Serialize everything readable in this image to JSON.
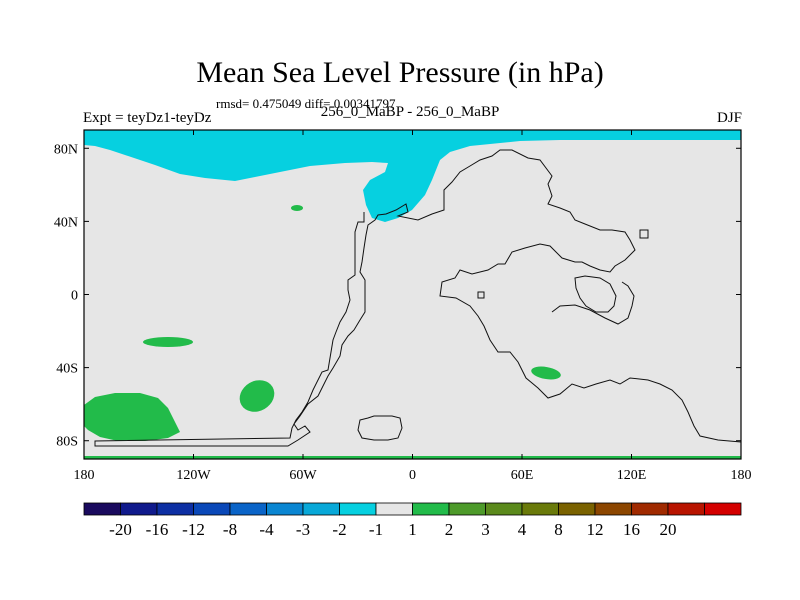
{
  "chart_data": {
    "type": "heatmap",
    "title": "Mean Sea Level Pressure (in hPa)",
    "subtitle": "rmsd= 0.475049 diff= 0.00341797",
    "left_label": "Expt = teyDz1-teyDz",
    "center_label": "256_0_MaBP - 256_0_MaBP",
    "right_label": "DJF",
    "x_axis": {
      "range": [
        -180,
        180
      ],
      "ticks": [
        -180,
        -120,
        -60,
        0,
        60,
        120,
        180
      ],
      "tick_labels": [
        "180",
        "120W",
        "60W",
        "0",
        "60E",
        "120E",
        "180"
      ]
    },
    "y_axis": {
      "range": [
        -90,
        90
      ],
      "ticks": [
        80,
        40,
        0,
        -40,
        -80
      ],
      "tick_labels": [
        "80N",
        "40N",
        "0",
        "40S",
        "80S"
      ]
    },
    "colorbar": {
      "colors": [
        "#1a0a5e",
        "#101a8c",
        "#0d2fa3",
        "#0a48b8",
        "#0a64c8",
        "#0a86d2",
        "#08a8d8",
        "#06d0e0",
        "#e6e6e6",
        "#22bb4a",
        "#4d9a2a",
        "#5b8a1c",
        "#6a7a0a",
        "#7a6200",
        "#8c4600",
        "#a02a00",
        "#b81400",
        "#d40000"
      ],
      "labels": [
        "-20",
        "-16",
        "-12",
        "-8",
        "-4",
        "-3",
        "-2",
        "-1",
        "1",
        "2",
        "3",
        "4",
        "8",
        "12",
        "16",
        "20"
      ]
    },
    "regions": [
      {
        "name": "Arctic low-pressure band",
        "range": "-2 to -1",
        "color": "#06d0e0"
      },
      {
        "name": "North Atlantic tongue",
        "range": "-2 to -1",
        "color": "#06d0e0"
      },
      {
        "name": "South Pacific patches",
        "range": "1 to 2",
        "color": "#22bb4a"
      },
      {
        "name": "Southern Indian Ocean patch",
        "range": "1 to 2",
        "color": "#22bb4a"
      }
    ],
    "background_color": "#e6e6e6"
  }
}
